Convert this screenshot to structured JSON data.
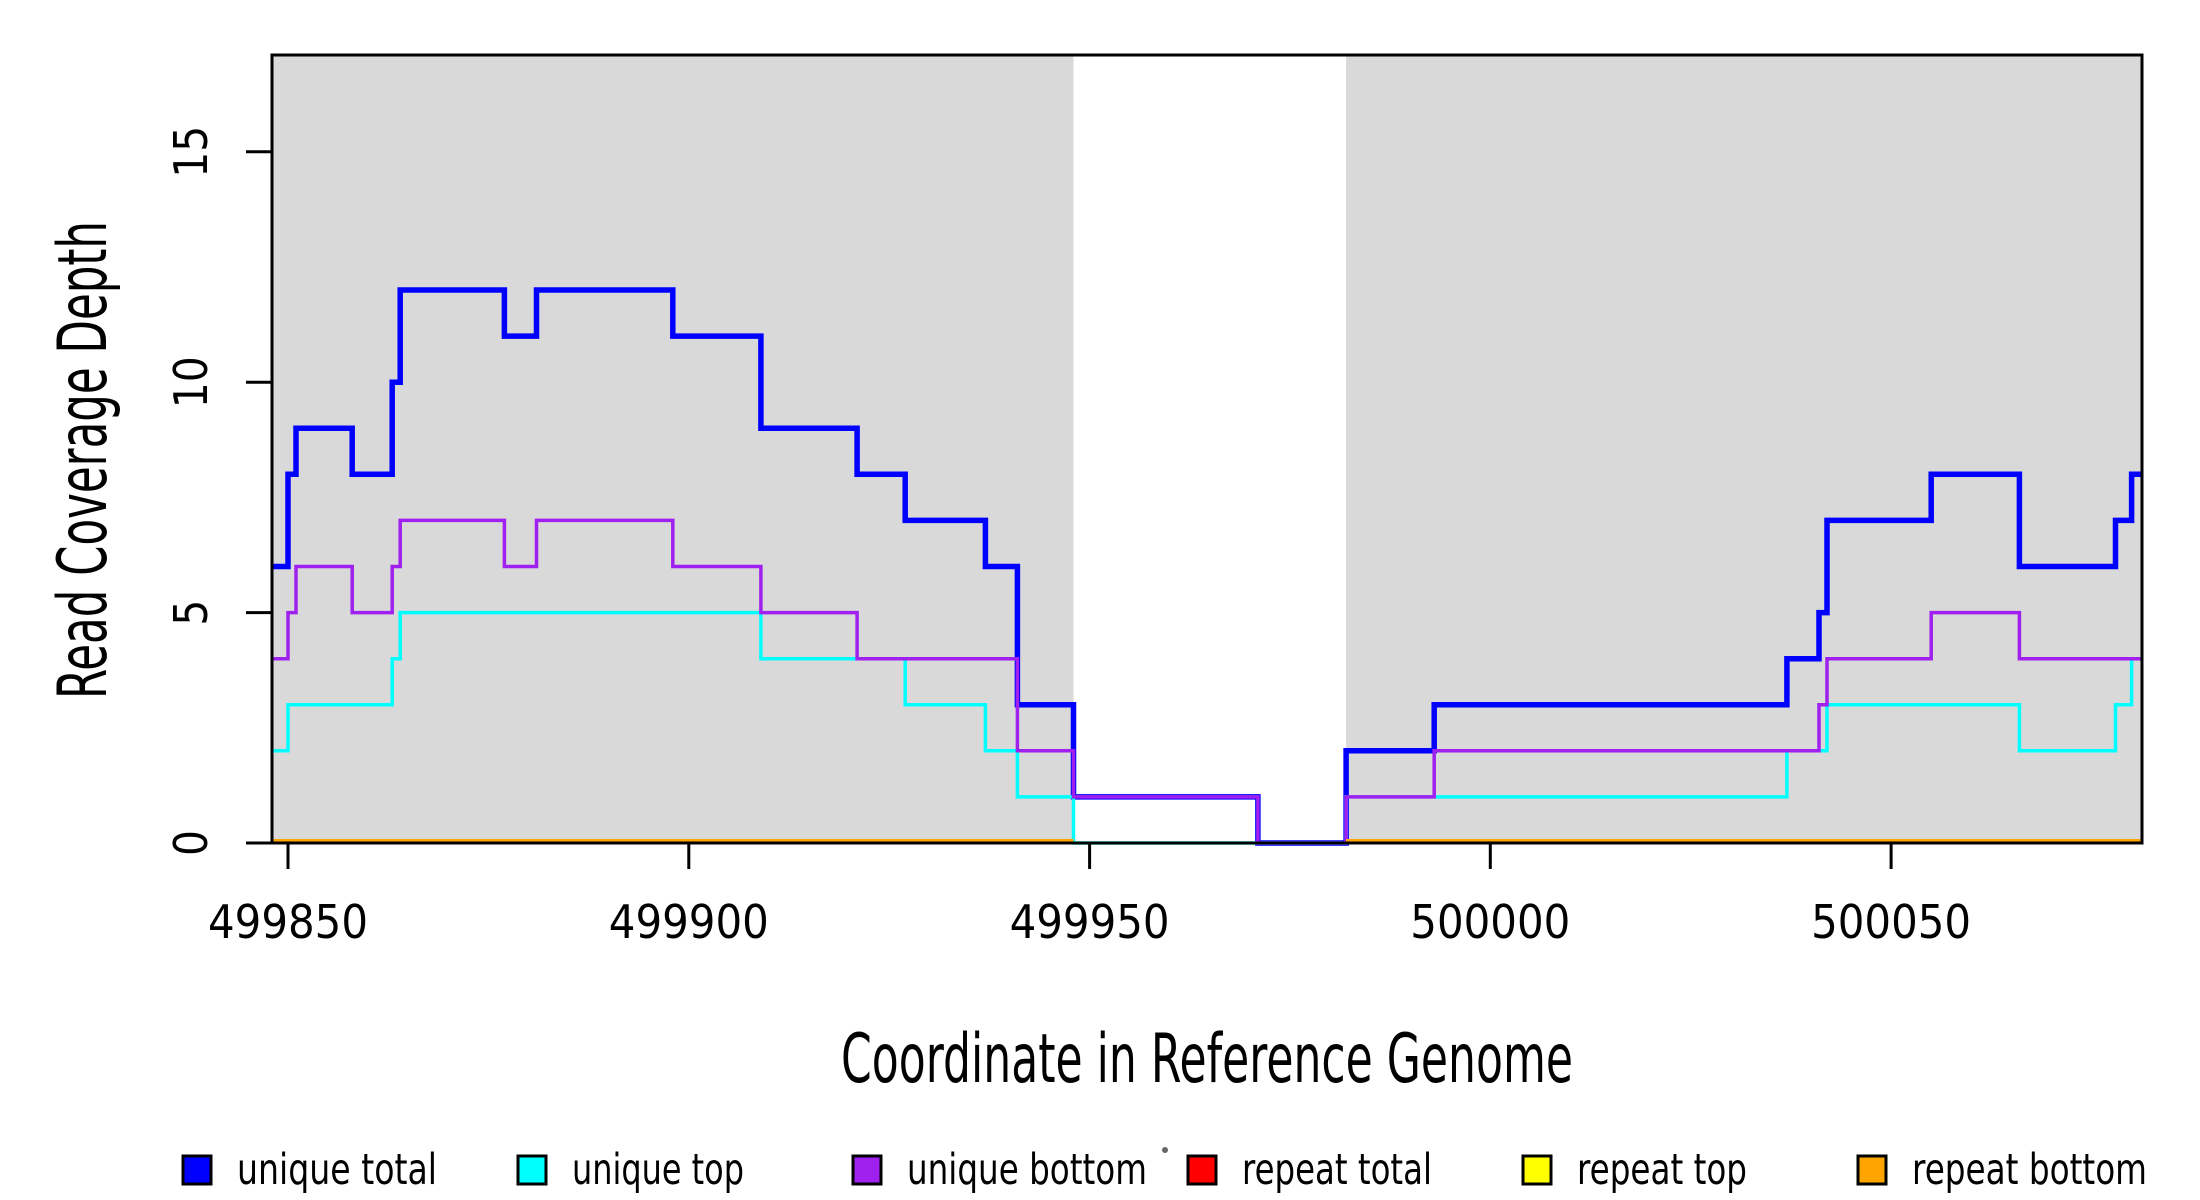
{
  "chart_data": {
    "type": "line",
    "subtype": "step-coverage-plot",
    "title": "",
    "xlabel": "Coordinate in Reference Genome",
    "ylabel": "Read Coverage Depth",
    "xlim": [
      499848,
      500081.3
    ],
    "ylim": [
      0,
      17.1
    ],
    "x_ticks": [
      499850,
      499900,
      499950,
      500000,
      500050
    ],
    "x_tick_labels": [
      "499850",
      "499900",
      "499950",
      "500000",
      "500050"
    ],
    "y_ticks": [
      0,
      5,
      10,
      15
    ],
    "y_tick_labels": [
      "0",
      "5",
      "10",
      "15"
    ],
    "grid": false,
    "background_color": "#FFFFFF",
    "shading": {
      "color": "#D9D9D9",
      "note": "gray rectangles spanning full plot height; white gap between them",
      "regions": [
        [
          499848,
          499948
        ],
        [
          499982,
          500081.3
        ]
      ]
    },
    "series": [
      {
        "name": "unique total",
        "color": "#0000FF",
        "steps": [
          [
            499848,
            6
          ],
          [
            499850,
            8
          ],
          [
            499851,
            9
          ],
          [
            499858,
            8
          ],
          [
            499863,
            10
          ],
          [
            499864,
            12
          ],
          [
            499877,
            11
          ],
          [
            499881,
            12
          ],
          [
            499898,
            11
          ],
          [
            499909,
            9
          ],
          [
            499921,
            8
          ],
          [
            499927,
            7
          ],
          [
            499937,
            6
          ],
          [
            499941,
            3
          ],
          [
            499948,
            1
          ],
          [
            499971,
            0
          ],
          [
            499982,
            2
          ],
          [
            499993,
            3
          ],
          [
            500037,
            4
          ],
          [
            500041,
            5
          ],
          [
            500042,
            7
          ],
          [
            500055,
            8
          ],
          [
            500066,
            6
          ],
          [
            500078,
            7
          ],
          [
            500080,
            8
          ]
        ],
        "end": 500081.3
      },
      {
        "name": "unique top",
        "color": "#00FFFF",
        "steps": [
          [
            499848,
            2
          ],
          [
            499850,
            3
          ],
          [
            499863,
            4
          ],
          [
            499864,
            5
          ],
          [
            499909,
            4
          ],
          [
            499927,
            3
          ],
          [
            499937,
            2
          ],
          [
            499941,
            1
          ],
          [
            499948,
            0
          ],
          [
            499982,
            1
          ],
          [
            500037,
            2
          ],
          [
            500042,
            3
          ],
          [
            500066,
            2
          ],
          [
            500078,
            3
          ],
          [
            500080,
            4
          ]
        ],
        "end": 500081.3
      },
      {
        "name": "unique bottom",
        "color": "#A020F0",
        "steps": [
          [
            499848,
            4
          ],
          [
            499850,
            5
          ],
          [
            499851,
            6
          ],
          [
            499858,
            5
          ],
          [
            499863,
            6
          ],
          [
            499864,
            7
          ],
          [
            499877,
            6
          ],
          [
            499881,
            7
          ],
          [
            499898,
            6
          ],
          [
            499909,
            5
          ],
          [
            499921,
            4
          ],
          [
            499941,
            2
          ],
          [
            499948,
            1
          ],
          [
            499971,
            0
          ],
          [
            499982,
            1
          ],
          [
            499993,
            2
          ],
          [
            500041,
            3
          ],
          [
            500042,
            4
          ],
          [
            500055,
            5
          ],
          [
            500066,
            4
          ]
        ],
        "end": 500081.3
      },
      {
        "name": "repeat total",
        "color": "#FF0000",
        "segments": [
          {
            "start": 499848,
            "end": 499948,
            "value": 0
          },
          {
            "start": 499982,
            "end": 500081.3,
            "value": 0
          }
        ]
      },
      {
        "name": "repeat top",
        "color": "#FFFF00",
        "segments": [
          {
            "start": 499848,
            "end": 499948,
            "value": 0
          },
          {
            "start": 499982,
            "end": 500081.3,
            "value": 0
          }
        ]
      },
      {
        "name": "repeat bottom",
        "color": "#FFA500",
        "segments": [
          {
            "start": 499848,
            "end": 499948,
            "value": 0
          },
          {
            "start": 499982,
            "end": 500081.3,
            "value": 0
          }
        ]
      }
    ],
    "legend": {
      "position": "bottom",
      "items": [
        {
          "label": "unique total",
          "color": "#0000FF"
        },
        {
          "label": "unique top",
          "color": "#00FFFF"
        },
        {
          "label": "unique bottom",
          "color": "#A020F0"
        },
        {
          "label": "repeat total",
          "color": "#FF0000"
        },
        {
          "label": "repeat top",
          "color": "#FFFF00"
        },
        {
          "label": "repeat bottom",
          "color": "#FFA500"
        }
      ]
    }
  }
}
